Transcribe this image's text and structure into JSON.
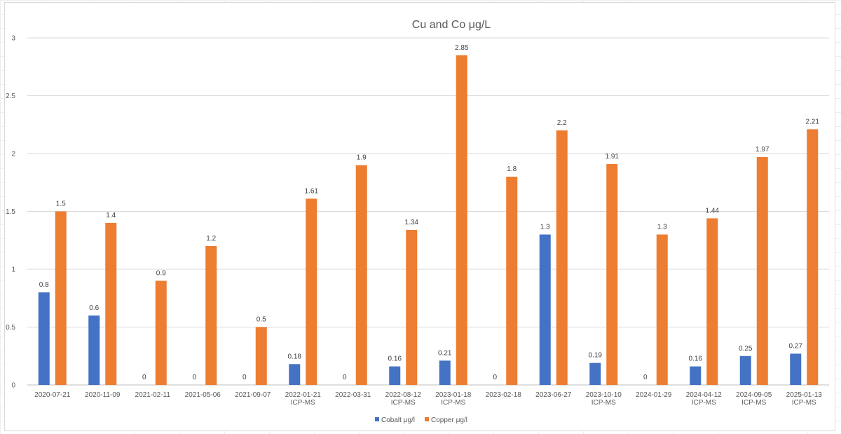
{
  "chart_data": {
    "type": "bar",
    "title": "Cu and Co μg/L",
    "ylim": [
      0,
      3
    ],
    "yticks": [
      0,
      0.5,
      1,
      1.5,
      2,
      2.5,
      3
    ],
    "grid": true,
    "legend_position": "bottom",
    "categories": [
      [
        "2020-07-21"
      ],
      [
        "2020-11-09"
      ],
      [
        "2021-02-11"
      ],
      [
        "2021-05-06"
      ],
      [
        "2021-09-07"
      ],
      [
        "2022-01-21",
        "ICP-MS"
      ],
      [
        "2022-03-31"
      ],
      [
        "2022-08-12",
        "ICP-MS"
      ],
      [
        "2023-01-18",
        "ICP-MS"
      ],
      [
        "2023-02-18"
      ],
      [
        "2023-06-27"
      ],
      [
        "2023-10-10",
        "ICP-MS"
      ],
      [
        "2024-01-29"
      ],
      [
        "2024-04-12",
        "ICP-MS"
      ],
      [
        "2024-09-05",
        "ICP-MS"
      ],
      [
        "2025-01-13",
        "ICP-MS"
      ]
    ],
    "series": [
      {
        "name": "Cobalt  μg/l",
        "color": "#4472c4",
        "values": [
          0.8,
          0.6,
          0,
          0,
          0,
          0.18,
          0,
          0.16,
          0.21,
          0,
          1.3,
          0.19,
          0,
          0.16,
          0.25,
          0.27
        ]
      },
      {
        "name": "Copper  μg/l",
        "color": "#ed7d31",
        "values": [
          1.5,
          1.4,
          0.9,
          1.2,
          0.5,
          1.61,
          1.9,
          1.34,
          2.85,
          1.8,
          2.2,
          1.91,
          1.3,
          1.44,
          1.97,
          2.21
        ]
      }
    ]
  }
}
